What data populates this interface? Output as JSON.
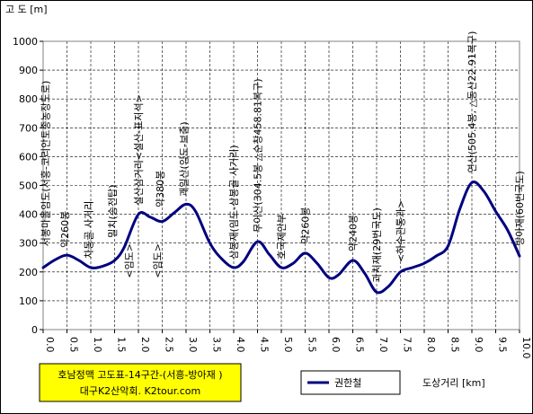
{
  "chart_data": {
    "type": "line",
    "ylabel": "고 도 [m]",
    "xlabel": "도상거리 [km]",
    "x_ticks": [
      "0.0",
      "0.5",
      "1.0",
      "1.5",
      "2.0",
      "2.5",
      "3.0",
      "3.5",
      "4.0",
      "4.5",
      "5.0",
      "5.5",
      "6.0",
      "6.5",
      "7.0",
      "7.5",
      "8.0",
      "8.5",
      "9.0",
      "9.5",
      "10.0"
    ],
    "y_ticks": [
      "0",
      "100",
      "200",
      "300",
      "400",
      "500",
      "600",
      "700",
      "800",
      "900",
      "1000"
    ],
    "xlim": [
      0,
      10
    ],
    "ylim": [
      0,
      1000
    ],
    "grid": true,
    "legend_position": "bottom",
    "title_lines": [
      "호남정맥 고도표-14구간-(서흥-방아재 )",
      "대구K2산악회. K2tour.com"
    ],
    "title_bg": "#ffff00",
    "line_color": "#000080",
    "series": [
      {
        "name": "권한철",
        "points": [
          [
            0.0,
            215
          ],
          [
            0.25,
            242
          ],
          [
            0.5,
            258
          ],
          [
            0.75,
            240
          ],
          [
            1.0,
            215
          ],
          [
            1.25,
            220
          ],
          [
            1.5,
            240
          ],
          [
            1.7,
            285
          ],
          [
            2.0,
            400
          ],
          [
            2.25,
            390
          ],
          [
            2.5,
            375
          ],
          [
            2.75,
            405
          ],
          [
            3.0,
            435
          ],
          [
            3.2,
            410
          ],
          [
            3.5,
            300
          ],
          [
            3.75,
            245
          ],
          [
            4.0,
            215
          ],
          [
            4.2,
            235
          ],
          [
            4.5,
            305
          ],
          [
            4.75,
            260
          ],
          [
            5.0,
            215
          ],
          [
            5.25,
            230
          ],
          [
            5.5,
            265
          ],
          [
            5.75,
            230
          ],
          [
            6.0,
            180
          ],
          [
            6.2,
            190
          ],
          [
            6.5,
            240
          ],
          [
            6.75,
            195
          ],
          [
            7.0,
            130
          ],
          [
            7.25,
            150
          ],
          [
            7.5,
            200
          ],
          [
            7.75,
            215
          ],
          [
            8.0,
            230
          ],
          [
            8.25,
            255
          ],
          [
            8.5,
            290
          ],
          [
            8.75,
            420
          ],
          [
            9.0,
            510
          ],
          [
            9.25,
            480
          ],
          [
            9.5,
            410
          ],
          [
            9.75,
            345
          ],
          [
            10.0,
            255
          ]
        ]
      }
    ],
    "annotations": [
      {
        "text": "서봉마을임도(서흥-코리안토종농장도로)",
        "x": 0.05,
        "y": 270
      },
      {
        "text": "약260봉",
        "x": 0.45,
        "y": 265
      },
      {
        "text": "차동골 사거리",
        "x": 0.95,
        "y": 228
      },
      {
        "text": "밀치(송전탑)",
        "x": 1.45,
        "y": 300
      },
      {
        "text": "설산삼거리<설산-표지석>",
        "x": 2.0,
        "y": 412
      },
      {
        "text": "약380봉",
        "x": 2.45,
        "y": 405
      },
      {
        "text": "괘일산(임도-보춤)",
        "x": 2.95,
        "y": 443
      },
      {
        "text": "삼봉재(임도-삼봉골 사거리)",
        "x": 4.0,
        "y": 225
      },
      {
        "text": "무이산(304.5봉 △순창458.81복구)",
        "x": 4.5,
        "y": 318
      },
      {
        "text": "호국제안부",
        "x": 5.0,
        "y": 225
      },
      {
        "text": "약260봉",
        "x": 5.5,
        "y": 278
      },
      {
        "text": "약240봉",
        "x": 6.5,
        "y": 252
      },
      {
        "text": "과치재(29번국도)",
        "x": 7.0,
        "y": 145
      },
      {
        "text": "<하수관통과>",
        "x": 7.5,
        "y": 215
      },
      {
        "text": "연산(505.4봉, △동산22.91복구)",
        "x": 9.0,
        "y": 525
      },
      {
        "text": "방아재(60번국도)",
        "x": 10.0,
        "y": 272
      },
      {
        "text": "<임도>",
        "x": 1.8,
        "y": 160
      },
      {
        "text": "<임도>",
        "x": 2.4,
        "y": 160
      }
    ]
  }
}
